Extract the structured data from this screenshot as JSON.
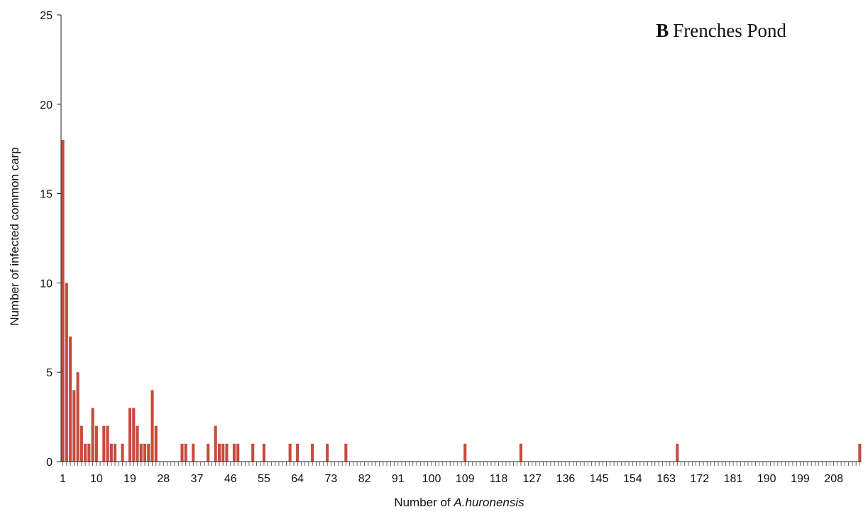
{
  "chart_data": {
    "type": "bar",
    "panel_letter": "B",
    "title": "Frenches Pond",
    "xlabel_prefix": "Number of ",
    "xlabel_italic": "A.huronensis",
    "ylabel": "Number of infected common carp",
    "ylim": [
      0,
      25
    ],
    "yticks": [
      0,
      5,
      10,
      15,
      20,
      25
    ],
    "xlim": [
      1,
      215
    ],
    "xticks": [
      1,
      10,
      19,
      28,
      37,
      46,
      55,
      64,
      73,
      82,
      91,
      100,
      109,
      118,
      127,
      136,
      145,
      154,
      163,
      172,
      181,
      190,
      199,
      208
    ],
    "bar_color": "#c84a3c",
    "x": [
      1,
      2,
      3,
      4,
      5,
      6,
      7,
      8,
      9,
      10,
      11,
      12,
      13,
      14,
      15,
      16,
      17,
      18,
      19,
      20,
      21,
      22,
      23,
      24,
      25,
      26,
      33,
      34,
      36,
      40,
      42,
      43,
      44,
      45,
      47,
      48,
      52,
      55,
      62,
      64,
      68,
      72,
      77,
      109,
      124,
      166,
      215
    ],
    "values": [
      18,
      10,
      7,
      4,
      5,
      2,
      1,
      1,
      3,
      2,
      0,
      2,
      2,
      1,
      1,
      0,
      1,
      0,
      3,
      3,
      2,
      1,
      1,
      1,
      4,
      2,
      1,
      1,
      1,
      1,
      2,
      1,
      1,
      1,
      1,
      1,
      1,
      1,
      1,
      1,
      1,
      1,
      1,
      1,
      1,
      1,
      1
    ],
    "grid": false,
    "legend": "none"
  }
}
